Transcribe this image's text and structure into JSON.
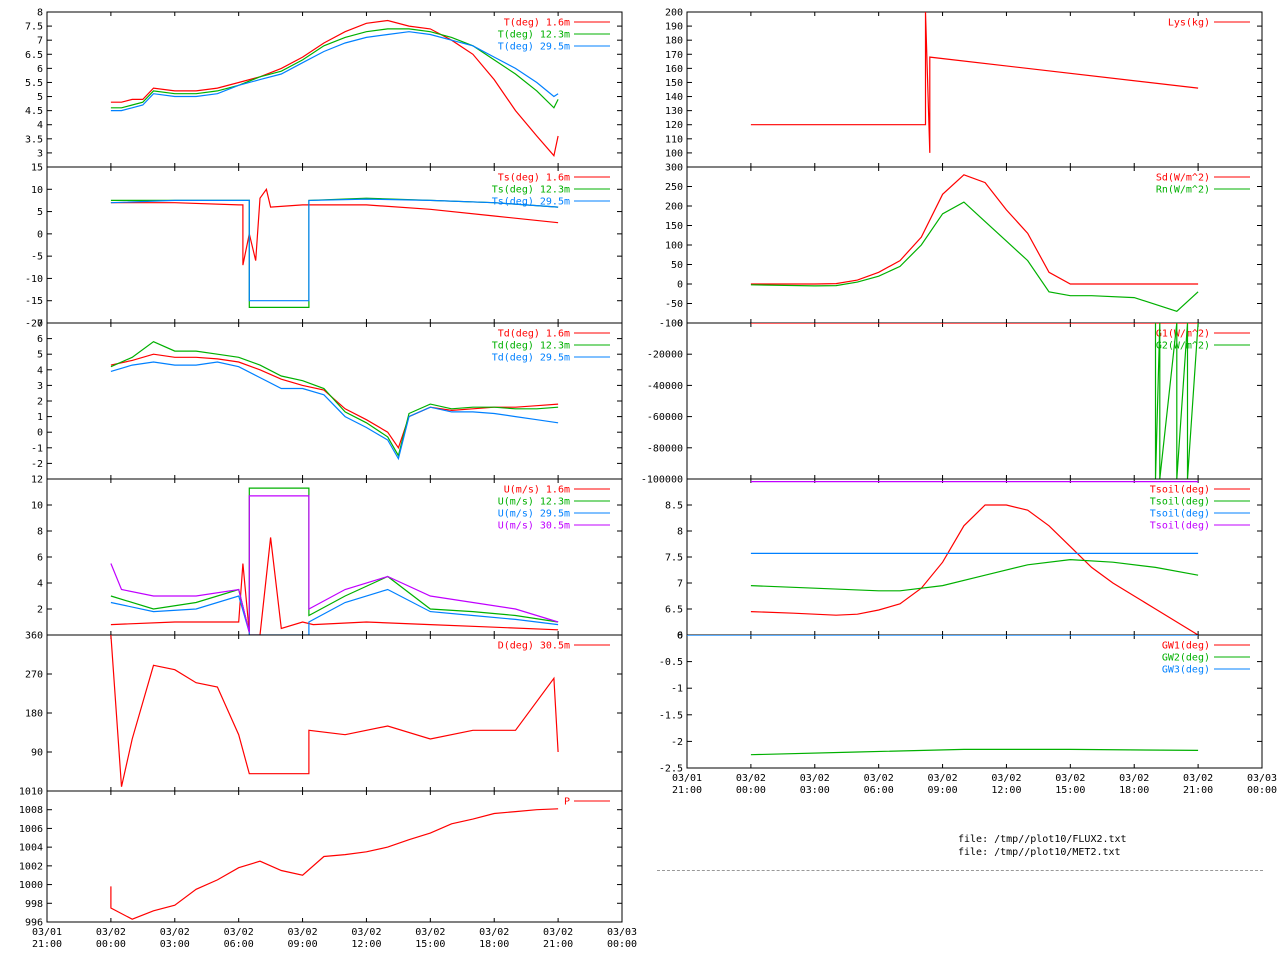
{
  "colors": {
    "red": "#ff0000",
    "green": "#00b000",
    "blue": "#0080ff",
    "magenta": "#c000ff"
  },
  "files": [
    "file: /tmp//plot10/FLUX2.txt",
    "file: /tmp//plot10/MET2.txt"
  ],
  "time_ticks": [
    "03/01\n21:00",
    "03/02\n00:00",
    "03/02\n03:00",
    "03/02\n06:00",
    "03/02\n09:00",
    "03/02\n12:00",
    "03/02\n15:00",
    "03/02\n18:00",
    "03/02\n21:00",
    "03/03\n00:00"
  ],
  "chart_data": [
    {
      "id": "temp",
      "type": "line",
      "column": "left",
      "ylim": [
        2.5,
        8
      ],
      "yticks": [
        "3",
        "3.5",
        "4",
        "4.5",
        "5",
        "5.5",
        "6",
        "6.5",
        "7",
        "7.5",
        "8"
      ],
      "series": [
        {
          "name": "T(deg)  1.6m",
          "color": "red",
          "x": [
            3,
            3.5,
            4,
            4.5,
            5,
            6,
            7,
            8,
            9,
            10,
            11,
            12,
            13,
            14,
            15,
            16,
            17,
            18,
            19,
            20,
            21,
            22,
            23,
            23.8,
            24
          ],
          "y": [
            4.8,
            4.8,
            4.9,
            4.9,
            5.3,
            5.2,
            5.2,
            5.3,
            5.5,
            5.7,
            6.0,
            6.4,
            6.9,
            7.3,
            7.6,
            7.7,
            7.5,
            7.4,
            7.0,
            6.5,
            5.6,
            4.5,
            3.6,
            2.9,
            3.6
          ]
        },
        {
          "name": "T(deg) 12.3m",
          "color": "green",
          "x": [
            3,
            3.5,
            4,
            4.5,
            5,
            6,
            7,
            8,
            9,
            10,
            11,
            12,
            13,
            14,
            15,
            16,
            17,
            18,
            19,
            20,
            21,
            22,
            23,
            23.8,
            24
          ],
          "y": [
            4.6,
            4.6,
            4.7,
            4.8,
            5.2,
            5.1,
            5.1,
            5.2,
            5.4,
            5.7,
            5.9,
            6.3,
            6.8,
            7.1,
            7.3,
            7.4,
            7.4,
            7.3,
            7.1,
            6.8,
            6.3,
            5.8,
            5.2,
            4.6,
            4.9
          ]
        },
        {
          "name": "T(deg) 29.5m",
          "color": "blue",
          "x": [
            3,
            3.5,
            4,
            4.5,
            5,
            6,
            7,
            8,
            9,
            10,
            11,
            12,
            13,
            14,
            15,
            16,
            17,
            18,
            19,
            20,
            21,
            22,
            23,
            23.8,
            24
          ],
          "y": [
            4.5,
            4.5,
            4.6,
            4.7,
            5.1,
            5.0,
            5.0,
            5.1,
            5.4,
            5.6,
            5.8,
            6.2,
            6.6,
            6.9,
            7.1,
            7.2,
            7.3,
            7.2,
            7.0,
            6.8,
            6.4,
            6.0,
            5.5,
            5.0,
            5.1
          ]
        }
      ]
    },
    {
      "id": "tsonic",
      "type": "line",
      "column": "left",
      "ylim": [
        -20,
        15
      ],
      "yticks": [
        "-20",
        "-15",
        "-10",
        "-5",
        "0",
        "5",
        "10",
        "15"
      ],
      "series": [
        {
          "name": "Ts(deg)  1.6m",
          "color": "red",
          "x": [
            3,
            6,
            9,
            9.2,
            9.2,
            9.5,
            9.5,
            9.8,
            10,
            10.3,
            10.5,
            12,
            15,
            18,
            21,
            24
          ],
          "y": [
            7,
            7,
            6.5,
            6.5,
            -7,
            0,
            0,
            -6,
            8,
            10,
            6,
            6.5,
            6.5,
            5.5,
            4,
            2.5
          ]
        },
        {
          "name": "Ts(deg) 12.3m",
          "color": "green",
          "x": [
            3,
            6,
            9,
            9.2,
            9.5,
            9.5,
            12.3,
            12.3,
            15,
            18,
            21,
            24
          ],
          "y": [
            7.5,
            7.5,
            7.5,
            7.5,
            7.5,
            -16.5,
            -16.5,
            7.5,
            8,
            7.5,
            7,
            6
          ]
        },
        {
          "name": "Ts(deg) 29.5m",
          "color": "blue",
          "x": [
            3,
            6,
            9,
            9.2,
            9.5,
            9.5,
            12.3,
            12.3,
            15,
            18,
            21,
            24
          ],
          "y": [
            7,
            7.5,
            7.5,
            7.5,
            7.5,
            -15,
            -15,
            7.5,
            7.8,
            7.5,
            7,
            6
          ]
        }
      ]
    },
    {
      "id": "dew",
      "type": "line",
      "column": "left",
      "ylim": [
        -3,
        7
      ],
      "yticks": [
        "-2",
        "-1",
        "0",
        "1",
        "2",
        "3",
        "4",
        "5",
        "6",
        "7"
      ],
      "series": [
        {
          "name": "Td(deg)  1.6m",
          "color": "red",
          "x": [
            3,
            4,
            5,
            6,
            7,
            8,
            9,
            10,
            11,
            12,
            13,
            14,
            15,
            16,
            16.5,
            17,
            18,
            19,
            20,
            21,
            22,
            23,
            24
          ],
          "y": [
            4.3,
            4.6,
            5.0,
            4.8,
            4.8,
            4.7,
            4.5,
            4.0,
            3.4,
            3.0,
            2.7,
            1.5,
            0.8,
            0.0,
            -1.0,
            1.0,
            1.6,
            1.4,
            1.5,
            1.6,
            1.6,
            1.7,
            1.8
          ]
        },
        {
          "name": "Td(deg) 12.3m",
          "color": "green",
          "x": [
            3,
            4,
            5,
            6,
            7,
            8,
            9,
            10,
            11,
            12,
            13,
            14,
            15,
            16,
            16.5,
            17,
            18,
            19,
            20,
            21,
            22,
            23,
            24
          ],
          "y": [
            4.2,
            4.8,
            5.8,
            5.2,
            5.2,
            5.0,
            4.8,
            4.3,
            3.6,
            3.3,
            2.8,
            1.3,
            0.6,
            -0.3,
            -1.5,
            1.2,
            1.8,
            1.5,
            1.6,
            1.6,
            1.5,
            1.5,
            1.6
          ]
        },
        {
          "name": "Td(deg) 29.5m",
          "color": "blue",
          "x": [
            3,
            4,
            5,
            6,
            7,
            8,
            9,
            10,
            11,
            12,
            13,
            14,
            15,
            16,
            16.5,
            17,
            18,
            19,
            20,
            21,
            22,
            23,
            24
          ],
          "y": [
            3.9,
            4.3,
            4.5,
            4.3,
            4.3,
            4.5,
            4.2,
            3.5,
            2.8,
            2.8,
            2.4,
            1.0,
            0.3,
            -0.5,
            -1.7,
            1.0,
            1.6,
            1.3,
            1.3,
            1.2,
            1.0,
            0.8,
            0.6
          ]
        }
      ]
    },
    {
      "id": "wind",
      "type": "line",
      "column": "left",
      "ylim": [
        0,
        12
      ],
      "yticks": [
        "2",
        "4",
        "6",
        "8",
        "10",
        "12"
      ],
      "series": [
        {
          "name": "U(m/s)  1.6m",
          "color": "red",
          "x": [
            3,
            6,
            9,
            9.2,
            9.5,
            9.5,
            10,
            10.5,
            11,
            12,
            12.5,
            15,
            18,
            21,
            24
          ],
          "y": [
            0.8,
            1.0,
            1.0,
            5.5,
            0.2,
            0,
            0,
            7.5,
            0.5,
            1.0,
            0.8,
            1.0,
            0.8,
            0.6,
            0.4
          ]
        },
        {
          "name": "U(m/s) 12.3m",
          "color": "green",
          "x": [
            3,
            5,
            7,
            9,
            9.5,
            9.5,
            12.3,
            12.3,
            14,
            16,
            18,
            20,
            22,
            24
          ],
          "y": [
            3.0,
            2.0,
            2.5,
            3.5,
            0.2,
            11.3,
            11.3,
            1.5,
            3.0,
            4.5,
            2.0,
            1.8,
            1.5,
            1.0
          ]
        },
        {
          "name": "U(m/s) 29.5m",
          "color": "blue",
          "x": [
            3,
            5,
            7,
            9,
            9.5,
            9.5,
            12.3,
            12.3,
            14,
            16,
            18,
            20,
            22,
            24
          ],
          "y": [
            2.5,
            1.8,
            2.0,
            3.0,
            0.2,
            0,
            0,
            1.0,
            2.5,
            3.5,
            1.8,
            1.5,
            1.2,
            0.8
          ]
        },
        {
          "name": "U(m/s) 30.5m",
          "color": "magenta",
          "x": [
            3,
            3.5,
            5,
            7,
            9,
            9.5,
            9.5,
            12.3,
            12.3,
            14,
            16,
            18,
            20,
            22,
            24
          ],
          "y": [
            5.5,
            3.5,
            3.0,
            3.0,
            3.5,
            0.2,
            10.7,
            10.7,
            2.0,
            3.5,
            4.5,
            3.0,
            2.5,
            2.0,
            1.0
          ]
        }
      ]
    },
    {
      "id": "dir",
      "type": "line",
      "column": "left",
      "ylim": [
        0,
        360
      ],
      "yticks": [
        "90",
        "180",
        "270",
        "360"
      ],
      "series": [
        {
          "name": "D(deg)  30.5m",
          "color": "red",
          "x": [
            3,
            3.5,
            4,
            5,
            6,
            7,
            8,
            9,
            9.5,
            10,
            11,
            12.3,
            12.3,
            14,
            16,
            18,
            20,
            22,
            23.8,
            24
          ],
          "y": [
            360,
            10,
            120,
            290,
            280,
            250,
            240,
            130,
            40,
            40,
            40,
            40,
            140,
            130,
            150,
            120,
            140,
            140,
            260,
            90
          ]
        }
      ]
    },
    {
      "id": "press",
      "type": "line",
      "column": "left",
      "ylim": [
        996,
        1010
      ],
      "yticks": [
        "996",
        "998",
        "1000",
        "1002",
        "1004",
        "1006",
        "1008",
        "1010"
      ],
      "series": [
        {
          "name": "P",
          "color": "red",
          "x": [
            3,
            3,
            4,
            5,
            6,
            7,
            8,
            9,
            10,
            11,
            12,
            13,
            14,
            15,
            16,
            17,
            18,
            19,
            20,
            21,
            22,
            23,
            24
          ],
          "y": [
            999.8,
            997.5,
            996.3,
            997.2,
            997.8,
            999.5,
            1000.5,
            1001.8,
            1002.5,
            1001.5,
            1001.0,
            1003.0,
            1003.2,
            1003.5,
            1004.0,
            1004.8,
            1005.5,
            1006.5,
            1007.0,
            1007.6,
            1007.8,
            1008.0,
            1008.1
          ]
        }
      ]
    },
    {
      "id": "lys",
      "type": "line",
      "column": "right",
      "ylim": [
        90,
        200
      ],
      "yticks": [
        "100",
        "110",
        "120",
        "130",
        "140",
        "150",
        "160",
        "170",
        "180",
        "190",
        "200"
      ],
      "series": [
        {
          "name": "Lys(kg)",
          "color": "red",
          "x": [
            3,
            11.2,
            11.2,
            11.4,
            11.4,
            24
          ],
          "y": [
            120,
            120,
            200,
            100,
            168,
            146
          ]
        }
      ]
    },
    {
      "id": "rad",
      "type": "line",
      "column": "right",
      "ylim": [
        -100,
        300
      ],
      "yticks": [
        "-100",
        "-50",
        "0",
        "50",
        "100",
        "150",
        "200",
        "250",
        "300"
      ],
      "series": [
        {
          "name": "Sd(W/m^2)",
          "color": "red",
          "x": [
            3,
            6,
            7,
            8,
            9,
            10,
            11,
            12,
            13,
            14,
            15,
            16,
            17,
            18,
            19,
            21,
            24
          ],
          "y": [
            0,
            0,
            1,
            10,
            30,
            60,
            120,
            230,
            280,
            260,
            190,
            130,
            30,
            0,
            0,
            0,
            0
          ]
        },
        {
          "name": "Rn(W/m^2)",
          "color": "green",
          "x": [
            3,
            6,
            7,
            8,
            9,
            10,
            11,
            12,
            13,
            14,
            15,
            16,
            17,
            18,
            19,
            21,
            23,
            24
          ],
          "y": [
            -2,
            -5,
            -4,
            5,
            20,
            45,
            100,
            180,
            210,
            160,
            110,
            60,
            -20,
            -30,
            -30,
            -35,
            -70,
            -20
          ]
        }
      ]
    },
    {
      "id": "gflux",
      "type": "line",
      "column": "right",
      "ylim": [
        -100000,
        0
      ],
      "yticks": [
        "-100000",
        "-80000",
        "-60000",
        "-40000",
        "-20000",
        "0"
      ],
      "series": [
        {
          "name": "G1(W/m^2)",
          "color": "red",
          "x": [
            3,
            24
          ],
          "y": [
            0,
            0
          ]
        },
        {
          "name": "G2(W/m^2)",
          "color": "green",
          "x": [
            22,
            22,
            22.2,
            22.2,
            23,
            23,
            23.5,
            23.5,
            24
          ],
          "y": [
            0,
            -100000,
            0,
            -100000,
            0,
            -100000,
            0,
            -100000,
            0
          ]
        }
      ]
    },
    {
      "id": "tsoil",
      "type": "line",
      "column": "right",
      "ylim": [
        6,
        9
      ],
      "yticks": [
        "6",
        "6.5",
        "7",
        "7.5",
        "8",
        "8.5"
      ],
      "series": [
        {
          "name": "Tsoil(deg)",
          "color": "red",
          "x": [
            3,
            5,
            7,
            8,
            9,
            10,
            11,
            12,
            13,
            14,
            15,
            16,
            17,
            18,
            19,
            20,
            21,
            22,
            23,
            24
          ],
          "y": [
            6.45,
            6.42,
            6.38,
            6.4,
            6.48,
            6.6,
            6.9,
            7.4,
            8.1,
            8.5,
            8.5,
            8.4,
            8.1,
            7.7,
            7.3,
            7.0,
            6.75,
            6.5,
            6.25,
            6.0
          ]
        },
        {
          "name": "Tsoil(deg)",
          "color": "green",
          "x": [
            3,
            6,
            9,
            10,
            12,
            14,
            16,
            18,
            20,
            22,
            24
          ],
          "y": [
            6.95,
            6.9,
            6.85,
            6.85,
            6.95,
            7.15,
            7.35,
            7.45,
            7.4,
            7.3,
            7.15
          ]
        },
        {
          "name": "Tsoil(deg)",
          "color": "blue",
          "x": [
            3,
            24
          ],
          "y": [
            7.57,
            7.57
          ]
        },
        {
          "name": "Tsoil(deg)",
          "color": "magenta",
          "x": [
            3,
            24
          ],
          "y": [
            8.95,
            8.95
          ]
        }
      ]
    },
    {
      "id": "gw",
      "type": "line",
      "column": "right",
      "ylim": [
        -2.5,
        0
      ],
      "yticks": [
        "-2.5",
        "-2",
        "-1.5",
        "-1",
        "-0.5",
        "0"
      ],
      "series": [
        {
          "name": "GW1(deg)",
          "color": "red",
          "x": [],
          "y": []
        },
        {
          "name": "GW2(deg)",
          "color": "green",
          "x": [
            3,
            8,
            13,
            18,
            24
          ],
          "y": [
            -2.25,
            -2.2,
            -2.15,
            -2.15,
            -2.17
          ]
        },
        {
          "name": "GW3(deg)",
          "color": "blue",
          "x": [
            0,
            24
          ],
          "y": [
            0,
            0
          ]
        }
      ]
    }
  ]
}
